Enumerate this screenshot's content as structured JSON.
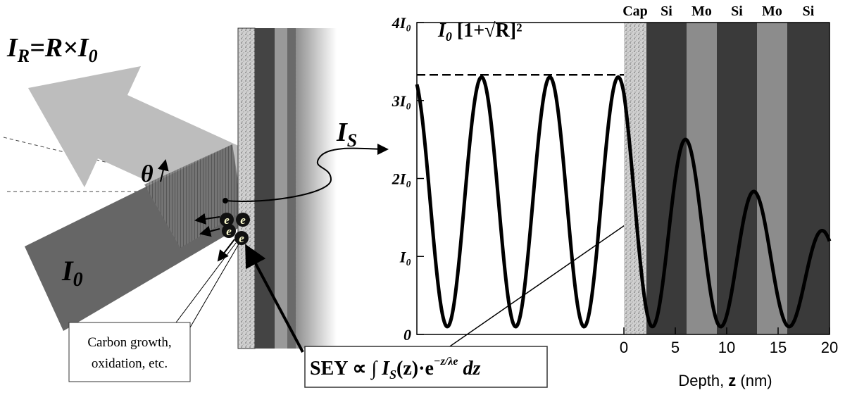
{
  "labels": {
    "reflected": [
      "I",
      "R",
      "=R×I",
      "0"
    ],
    "theta": "θ",
    "incident": [
      "I",
      "0"
    ],
    "standing": [
      "I",
      "S"
    ]
  },
  "electron": "e",
  "note": [
    "Carbon growth,",
    "oxidation, etc."
  ],
  "formula": [
    "SEY ∝ ∫ ",
    "I",
    "S",
    "(z)·e",
    "−z/λe",
    " dz"
  ],
  "plot": {
    "layers": [
      "Cap",
      "Si",
      "Mo",
      "Si",
      "Mo",
      "Si"
    ],
    "xticks": [
      0,
      5,
      10,
      15,
      20
    ],
    "yticks": [
      0,
      {
        "value": 1,
        "label": "I₀"
      },
      {
        "value": 2,
        "label": "2I₀"
      },
      {
        "value": 3,
        "label": "3I₀"
      },
      {
        "value": 4,
        "label": "4I₀"
      }
    ],
    "max_label": [
      "I",
      "0",
      " [1+√R]²"
    ],
    "x_title": [
      "Depth, ",
      "z",
      " (nm)"
    ]
  }
}
